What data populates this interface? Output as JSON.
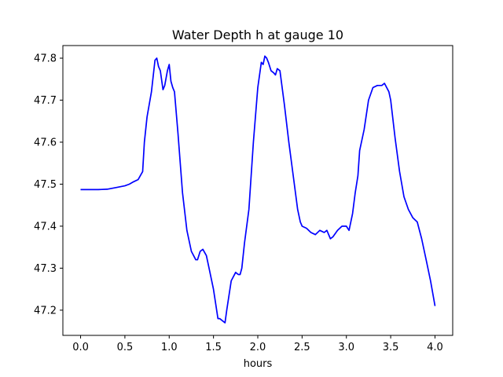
{
  "chart_data": {
    "type": "line",
    "title": "Water Depth h at gauge 10",
    "xlabel": "hours",
    "ylabel": "",
    "xlim": [
      -0.2,
      4.2
    ],
    "ylim": [
      47.14,
      47.83
    ],
    "grid": false,
    "legend": "none",
    "x_ticks": [
      0.0,
      0.5,
      1.0,
      1.5,
      2.0,
      2.5,
      3.0,
      3.5,
      4.0
    ],
    "x_tick_labels": [
      "0.0",
      "0.5",
      "1.0",
      "1.5",
      "2.0",
      "2.5",
      "3.0",
      "3.5",
      "4.0"
    ],
    "y_ticks": [
      47.2,
      47.3,
      47.4,
      47.5,
      47.6,
      47.7,
      47.8
    ],
    "y_tick_labels": [
      "47.2",
      "47.3",
      "47.4",
      "47.5",
      "47.6",
      "47.7",
      "47.8"
    ],
    "series": [
      {
        "color": "#0000ff",
        "x": [
          0.0,
          0.1,
          0.2,
          0.3,
          0.4,
          0.5,
          0.55,
          0.6,
          0.65,
          0.7,
          0.72,
          0.75,
          0.8,
          0.84,
          0.86,
          0.88,
          0.9,
          0.93,
          0.95,
          0.98,
          1.0,
          1.02,
          1.04,
          1.06,
          1.1,
          1.15,
          1.2,
          1.25,
          1.3,
          1.32,
          1.35,
          1.38,
          1.42,
          1.45,
          1.5,
          1.55,
          1.57,
          1.6,
          1.63,
          1.65,
          1.7,
          1.75,
          1.78,
          1.8,
          1.82,
          1.85,
          1.9,
          1.95,
          2.0,
          2.04,
          2.06,
          2.08,
          2.1,
          2.12,
          2.15,
          2.18,
          2.2,
          2.22,
          2.25,
          2.3,
          2.35,
          2.4,
          2.45,
          2.48,
          2.5,
          2.55,
          2.6,
          2.65,
          2.7,
          2.75,
          2.78,
          2.82,
          2.85,
          2.9,
          2.95,
          3.0,
          3.03,
          3.07,
          3.1,
          3.13,
          3.15,
          3.2,
          3.25,
          3.3,
          3.35,
          3.4,
          3.43,
          3.48,
          3.5,
          3.55,
          3.6,
          3.65,
          3.7,
          3.75,
          3.8,
          3.85,
          3.9,
          3.95,
          4.0
        ],
        "values": [
          47.487,
          47.487,
          47.487,
          47.488,
          47.492,
          47.496,
          47.5,
          47.506,
          47.511,
          47.53,
          47.6,
          47.66,
          47.72,
          47.795,
          47.8,
          47.78,
          47.77,
          47.725,
          47.735,
          47.77,
          47.785,
          47.745,
          47.73,
          47.72,
          47.62,
          47.48,
          47.39,
          47.34,
          47.32,
          47.32,
          47.34,
          47.345,
          47.33,
          47.3,
          47.25,
          47.18,
          47.18,
          47.175,
          47.17,
          47.2,
          47.27,
          47.29,
          47.285,
          47.285,
          47.3,
          47.36,
          47.44,
          47.6,
          47.73,
          47.79,
          47.785,
          47.805,
          47.8,
          47.79,
          47.77,
          47.765,
          47.76,
          47.775,
          47.77,
          47.69,
          47.6,
          47.52,
          47.44,
          47.41,
          47.4,
          47.395,
          47.385,
          47.38,
          47.39,
          47.385,
          47.39,
          47.37,
          47.375,
          47.39,
          47.4,
          47.4,
          47.39,
          47.43,
          47.48,
          47.52,
          47.58,
          47.63,
          47.7,
          47.73,
          47.735,
          47.735,
          47.74,
          47.72,
          47.7,
          47.61,
          47.53,
          47.47,
          47.44,
          47.42,
          47.41,
          47.37,
          47.32,
          47.27,
          47.21
        ]
      }
    ]
  }
}
